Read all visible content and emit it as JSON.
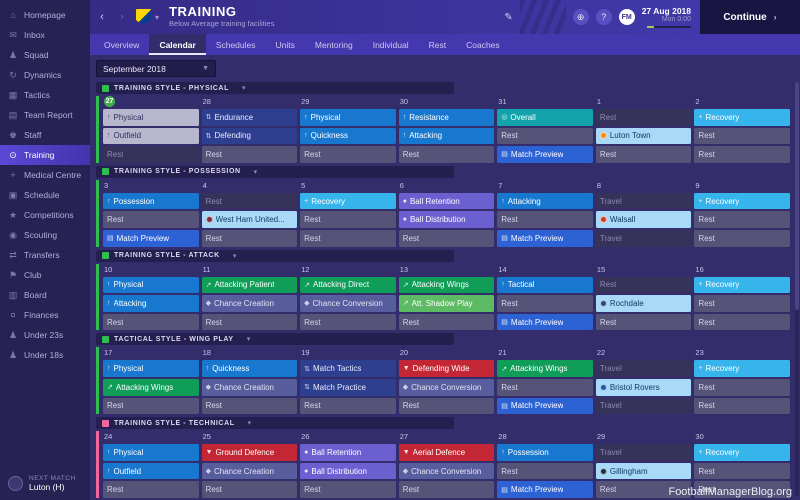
{
  "header": {
    "title": "TRAINING",
    "subtitle": "Below Average training facilities",
    "fm_logo": "FM",
    "help_icon": "?",
    "date": "27 Aug 2018",
    "time": "Mon 0:00",
    "continue_label": "Continue"
  },
  "tabs": [
    {
      "label": "Overview"
    },
    {
      "label": "Calendar",
      "selected": true
    },
    {
      "label": "Schedules"
    },
    {
      "label": "Units"
    },
    {
      "label": "Mentoring"
    },
    {
      "label": "Individual"
    },
    {
      "label": "Rest"
    },
    {
      "label": "Coaches"
    }
  ],
  "month": {
    "label": "September 2018"
  },
  "sidebar": {
    "items": [
      {
        "label": "Homepage",
        "icon": "⌂"
      },
      {
        "label": "Inbox",
        "icon": "✉"
      },
      {
        "label": "Squad",
        "icon": "♟"
      },
      {
        "label": "Dynamics",
        "icon": "↻"
      },
      {
        "label": "Tactics",
        "icon": "▦"
      },
      {
        "label": "Team Report",
        "icon": "▤"
      },
      {
        "label": "Staff",
        "icon": "♚"
      },
      {
        "label": "Training",
        "icon": "⊙",
        "selected": true
      },
      {
        "label": "Medical Centre",
        "icon": "+"
      },
      {
        "label": "Schedule",
        "icon": "▣"
      },
      {
        "label": "Competitions",
        "icon": "★"
      },
      {
        "label": "Scouting",
        "icon": "◉"
      },
      {
        "label": "Transfers",
        "icon": "⇄"
      },
      {
        "label": "Club",
        "icon": "⚑"
      },
      {
        "label": "Board",
        "icon": "▥"
      },
      {
        "label": "Finances",
        "icon": "¤"
      },
      {
        "label": "Under 23s",
        "icon": "♟"
      },
      {
        "label": "Under 18s",
        "icon": "♟"
      }
    ],
    "next_match_label": "NEXT MATCH",
    "next_match_value": "Luton (H)"
  },
  "watermark": "FootballManagerBlog.org",
  "colors": {
    "today": "#3fae49"
  },
  "palette": {
    "blue": {
      "bg": "#1878d0",
      "fg": "#ffffff"
    },
    "navy": {
      "bg": "#2e3f8f",
      "fg": "#e8ebff"
    },
    "teal": {
      "bg": "#13a3ab",
      "fg": "#ffffff"
    },
    "recovery": {
      "bg": "#36b4ec",
      "fg": "#ffffff"
    },
    "rest": {
      "bg": "#565379",
      "fg": "#d6d4e8"
    },
    "dim": {
      "bg": "#363259",
      "fg": "#8d8ab0"
    },
    "past": {
      "bg": "#b9b7ce",
      "fg": "#312d5e"
    },
    "fixture": {
      "bg": "#a8d9f7",
      "fg": "#123a63"
    },
    "preview": {
      "bg": "#2d62d4",
      "fg": "#ffffff"
    },
    "green": {
      "bg": "#0f9d58",
      "fg": "#ffffff"
    },
    "lightgreen": {
      "bg": "#5dbb63",
      "fg": "#ffffff"
    },
    "purple": {
      "bg": "#6c5fd0",
      "fg": "#ffffff"
    },
    "slate": {
      "bg": "#585d9d",
      "fg": "#e3e4f5"
    },
    "red": {
      "bg": "#c32735",
      "fg": "#ffffff"
    }
  },
  "type_icons": {
    "blue": "↑",
    "navy": "⇅",
    "teal": "◎",
    "recovery": "+",
    "green": "↗",
    "lightgreen": "↗",
    "purple": "●",
    "slate": "◆",
    "red": "▼",
    "past": "↑",
    "preview": "▤"
  },
  "sections": [
    {
      "title": "TRAINING STYLE - PHYSICAL",
      "accent": "#2fbf4f",
      "days": [
        {
          "num": "27",
          "today": true,
          "sessions": [
            {
              "label": "Physical",
              "type": "past"
            },
            {
              "label": "Outfield",
              "type": "past"
            },
            {
              "label": "Rest",
              "type": "dim"
            }
          ]
        },
        {
          "num": "28",
          "sessions": [
            {
              "label": "Endurance",
              "type": "navy"
            },
            {
              "label": "Defending",
              "type": "navy"
            },
            {
              "label": "Rest",
              "type": "rest"
            }
          ]
        },
        {
          "num": "29",
          "sessions": [
            {
              "label": "Physical",
              "type": "blue"
            },
            {
              "label": "Quickness",
              "type": "blue"
            },
            {
              "label": "Rest",
              "type": "rest"
            }
          ]
        },
        {
          "num": "30",
          "sessions": [
            {
              "label": "Resistance",
              "type": "blue"
            },
            {
              "label": "Attacking",
              "type": "blue"
            },
            {
              "label": "Rest",
              "type": "rest"
            }
          ]
        },
        {
          "num": "31",
          "sessions": [
            {
              "label": "Overall",
              "type": "teal"
            },
            {
              "label": "Rest",
              "type": "rest"
            },
            {
              "label": "Match Preview",
              "type": "preview"
            }
          ]
        },
        {
          "num": "1",
          "sessions": [
            {
              "label": "Rest",
              "type": "dim"
            },
            {
              "label": "Luton Town",
              "type": "fixture",
              "badge": "#ef8f1f"
            },
            {
              "label": "Rest",
              "type": "rest"
            }
          ]
        },
        {
          "num": "2",
          "sessions": [
            {
              "label": "Recovery",
              "type": "recovery"
            },
            {
              "label": "Rest",
              "type": "rest"
            },
            {
              "label": "Rest",
              "type": "rest"
            }
          ]
        }
      ]
    },
    {
      "title": "TRAINING STYLE - POSSESSION",
      "accent": "#2fbf4f",
      "days": [
        {
          "num": "3",
          "sessions": [
            {
              "label": "Possession",
              "type": "blue"
            },
            {
              "label": "Rest",
              "type": "rest"
            },
            {
              "label": "Match Preview",
              "type": "preview"
            }
          ]
        },
        {
          "num": "4",
          "sessions": [
            {
              "label": "Rest",
              "type": "dim"
            },
            {
              "label": "West Ham United...",
              "type": "fixture",
              "badge": "#7d2c40"
            },
            {
              "label": "Rest",
              "type": "rest"
            }
          ]
        },
        {
          "num": "5",
          "sessions": [
            {
              "label": "Recovery",
              "type": "recovery"
            },
            {
              "label": "Rest",
              "type": "rest"
            },
            {
              "label": "Rest",
              "type": "rest"
            }
          ]
        },
        {
          "num": "6",
          "sessions": [
            {
              "label": "Ball Retention",
              "type": "purple"
            },
            {
              "label": "Ball Distribution",
              "type": "purple"
            },
            {
              "label": "Rest",
              "type": "rest"
            }
          ]
        },
        {
          "num": "7",
          "sessions": [
            {
              "label": "Attacking",
              "type": "blue"
            },
            {
              "label": "Rest",
              "type": "rest"
            },
            {
              "label": "Match Preview",
              "type": "preview"
            }
          ]
        },
        {
          "num": "8",
          "sessions": [
            {
              "label": "Travel",
              "type": "dim"
            },
            {
              "label": "Walsall",
              "type": "fixture",
              "badge": "#d23a31"
            },
            {
              "label": "Travel",
              "type": "dim"
            }
          ]
        },
        {
          "num": "9",
          "sessions": [
            {
              "label": "Recovery",
              "type": "recovery"
            },
            {
              "label": "Rest",
              "type": "rest"
            },
            {
              "label": "Rest",
              "type": "rest"
            }
          ]
        }
      ]
    },
    {
      "title": "TRAINING STYLE - ATTACK",
      "accent": "#2fbf4f",
      "days": [
        {
          "num": "10",
          "sessions": [
            {
              "label": "Physical",
              "type": "blue"
            },
            {
              "label": "Attacking",
              "type": "blue"
            },
            {
              "label": "Rest",
              "type": "rest"
            }
          ]
        },
        {
          "num": "11",
          "sessions": [
            {
              "label": "Attacking Patient",
              "type": "green"
            },
            {
              "label": "Chance Creation",
              "type": "slate"
            },
            {
              "label": "Rest",
              "type": "rest"
            }
          ]
        },
        {
          "num": "12",
          "sessions": [
            {
              "label": "Attacking Direct",
              "type": "green"
            },
            {
              "label": "Chance Conversion",
              "type": "slate"
            },
            {
              "label": "Rest",
              "type": "rest"
            }
          ]
        },
        {
          "num": "13",
          "sessions": [
            {
              "label": "Attacking Wings",
              "type": "green"
            },
            {
              "label": "Att. Shadow Play",
              "type": "lightgreen"
            },
            {
              "label": "Rest",
              "type": "rest"
            }
          ]
        },
        {
          "num": "14",
          "sessions": [
            {
              "label": "Tactical",
              "type": "blue"
            },
            {
              "label": "Rest",
              "type": "rest"
            },
            {
              "label": "Match Preview",
              "type": "preview"
            }
          ]
        },
        {
          "num": "15",
          "sessions": [
            {
              "label": "Rest",
              "type": "dim"
            },
            {
              "label": "Rochdale",
              "type": "fixture",
              "badge": "#2a4a84"
            },
            {
              "label": "Rest",
              "type": "rest"
            }
          ]
        },
        {
          "num": "16",
          "sessions": [
            {
              "label": "Recovery",
              "type": "recovery"
            },
            {
              "label": "Rest",
              "type": "rest"
            },
            {
              "label": "Rest",
              "type": "rest"
            }
          ]
        }
      ]
    },
    {
      "title": "TACTICAL STYLE - WING PLAY",
      "accent": "#2fbf4f",
      "days": [
        {
          "num": "17",
          "sessions": [
            {
              "label": "Physical",
              "type": "blue"
            },
            {
              "label": "Attacking Wings",
              "type": "green"
            },
            {
              "label": "Rest",
              "type": "rest"
            }
          ]
        },
        {
          "num": "18",
          "sessions": [
            {
              "label": "Quickness",
              "type": "blue"
            },
            {
              "label": "Chance Creation",
              "type": "slate"
            },
            {
              "label": "Rest",
              "type": "rest"
            }
          ]
        },
        {
          "num": "19",
          "sessions": [
            {
              "label": "Match Tactics",
              "type": "navy"
            },
            {
              "label": "Match Practice",
              "type": "navy"
            },
            {
              "label": "Rest",
              "type": "rest"
            }
          ]
        },
        {
          "num": "20",
          "sessions": [
            {
              "label": "Defending Wide",
              "type": "red"
            },
            {
              "label": "Chance Conversion",
              "type": "slate"
            },
            {
              "label": "Rest",
              "type": "rest"
            }
          ]
        },
        {
          "num": "21",
          "sessions": [
            {
              "label": "Attacking Wings",
              "type": "green"
            },
            {
              "label": "Rest",
              "type": "rest"
            },
            {
              "label": "Match Preview",
              "type": "preview"
            }
          ]
        },
        {
          "num": "22",
          "sessions": [
            {
              "label": "Travel",
              "type": "dim"
            },
            {
              "label": "Bristol Rovers",
              "type": "fixture",
              "badge": "#1b5cab"
            },
            {
              "label": "Travel",
              "type": "dim"
            }
          ]
        },
        {
          "num": "23",
          "sessions": [
            {
              "label": "Recovery",
              "type": "recovery"
            },
            {
              "label": "Rest",
              "type": "rest"
            },
            {
              "label": "Rest",
              "type": "rest"
            }
          ]
        }
      ]
    },
    {
      "title": "TRAINING STYLE - TECHNICAL",
      "accent": "#f2679b",
      "days": [
        {
          "num": "24",
          "sessions": [
            {
              "label": "Physical",
              "type": "blue"
            },
            {
              "label": "Outfield",
              "type": "blue"
            },
            {
              "label": "Rest",
              "type": "rest"
            }
          ]
        },
        {
          "num": "25",
          "sessions": [
            {
              "label": "Ground Defence",
              "type": "red"
            },
            {
              "label": "Chance Creation",
              "type": "slate"
            },
            {
              "label": "Rest",
              "type": "rest"
            }
          ]
        },
        {
          "num": "26",
          "sessions": [
            {
              "label": "Ball Retention",
              "type": "purple"
            },
            {
              "label": "Ball Distribution",
              "type": "purple"
            },
            {
              "label": "Rest",
              "type": "rest"
            }
          ]
        },
        {
          "num": "27",
          "sessions": [
            {
              "label": "Aerial Defence",
              "type": "red"
            },
            {
              "label": "Chance Conversion",
              "type": "slate"
            },
            {
              "label": "Rest",
              "type": "rest"
            }
          ]
        },
        {
          "num": "28",
          "sessions": [
            {
              "label": "Possession",
              "type": "blue"
            },
            {
              "label": "Rest",
              "type": "rest"
            },
            {
              "label": "Match Preview",
              "type": "preview"
            }
          ]
        },
        {
          "num": "29",
          "sessions": [
            {
              "label": "Travel",
              "type": "dim"
            },
            {
              "label": "Gillingham",
              "type": "fixture",
              "badge": "#17304e"
            },
            {
              "label": "Rest",
              "type": "rest"
            }
          ]
        },
        {
          "num": "30",
          "sessions": [
            {
              "label": "Recovery",
              "type": "recovery"
            },
            {
              "label": "Rest",
              "type": "rest"
            },
            {
              "label": "Rest",
              "type": "rest"
            }
          ]
        }
      ]
    }
  ]
}
